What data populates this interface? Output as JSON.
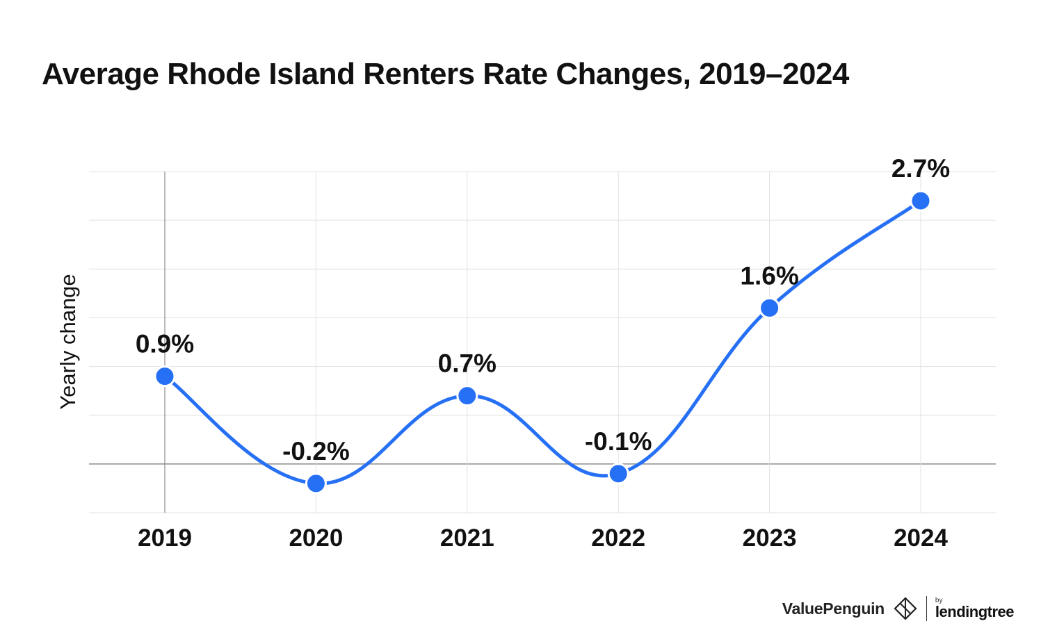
{
  "title": "Average Rhode Island Renters Rate Changes, 2019–2024",
  "chart_data": {
    "type": "line",
    "title": "Average Rhode Island Renters Rate Changes, 2019–2024",
    "xlabel": "",
    "ylabel": "Yearly change",
    "categories": [
      "2019",
      "2020",
      "2021",
      "2022",
      "2023",
      "2024"
    ],
    "values": [
      0.9,
      -0.2,
      0.7,
      -0.1,
      1.6,
      2.7
    ],
    "data_labels": [
      "0.9%",
      "-0.2%",
      "0.7%",
      "-0.1%",
      "1.6%",
      "2.7%"
    ],
    "ylim": [
      -0.5,
      3.0
    ],
    "grid": true,
    "smooth": true,
    "color": "#2670F5"
  },
  "branding": {
    "name": "ValuePenguin",
    "by": "by",
    "partner": "lendingtree"
  },
  "colors": {
    "line": "#2670F5",
    "grid": "#E0E0E0",
    "axis": "#8C8C8C"
  }
}
